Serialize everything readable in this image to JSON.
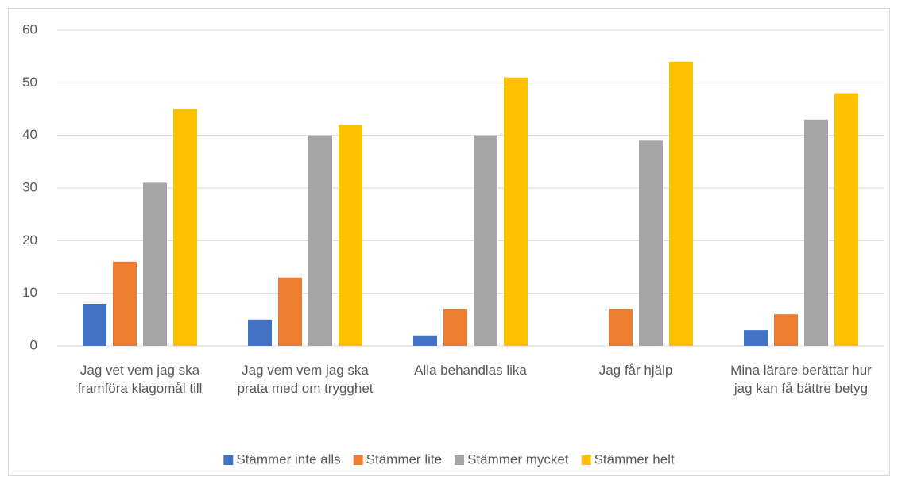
{
  "chart_data": {
    "type": "bar",
    "categories": [
      "Jag vet vem jag ska framföra klagomål till",
      "Jag vem vem jag ska prata med om trygghet",
      "Alla behandlas lika",
      "Jag får hjälp",
      "Mina lärare berättar hur jag kan få bättre betyg"
    ],
    "series": [
      {
        "name": "Stämmer inte alls",
        "color": "#4472c4",
        "values": [
          8,
          5,
          2,
          0,
          3
        ]
      },
      {
        "name": "Stämmer lite",
        "color": "#ed7d31",
        "values": [
          16,
          13,
          7,
          7,
          6
        ]
      },
      {
        "name": "Stämmer mycket",
        "color": "#a5a5a5",
        "values": [
          31,
          40,
          40,
          39,
          43
        ]
      },
      {
        "name": "Stämmer helt",
        "color": "#ffc000",
        "values": [
          45,
          42,
          51,
          54,
          48
        ]
      }
    ],
    "ylim": [
      0,
      60
    ],
    "yticks": [
      0,
      10,
      20,
      30,
      40,
      50,
      60
    ],
    "grid": true,
    "legend": "bottom"
  }
}
